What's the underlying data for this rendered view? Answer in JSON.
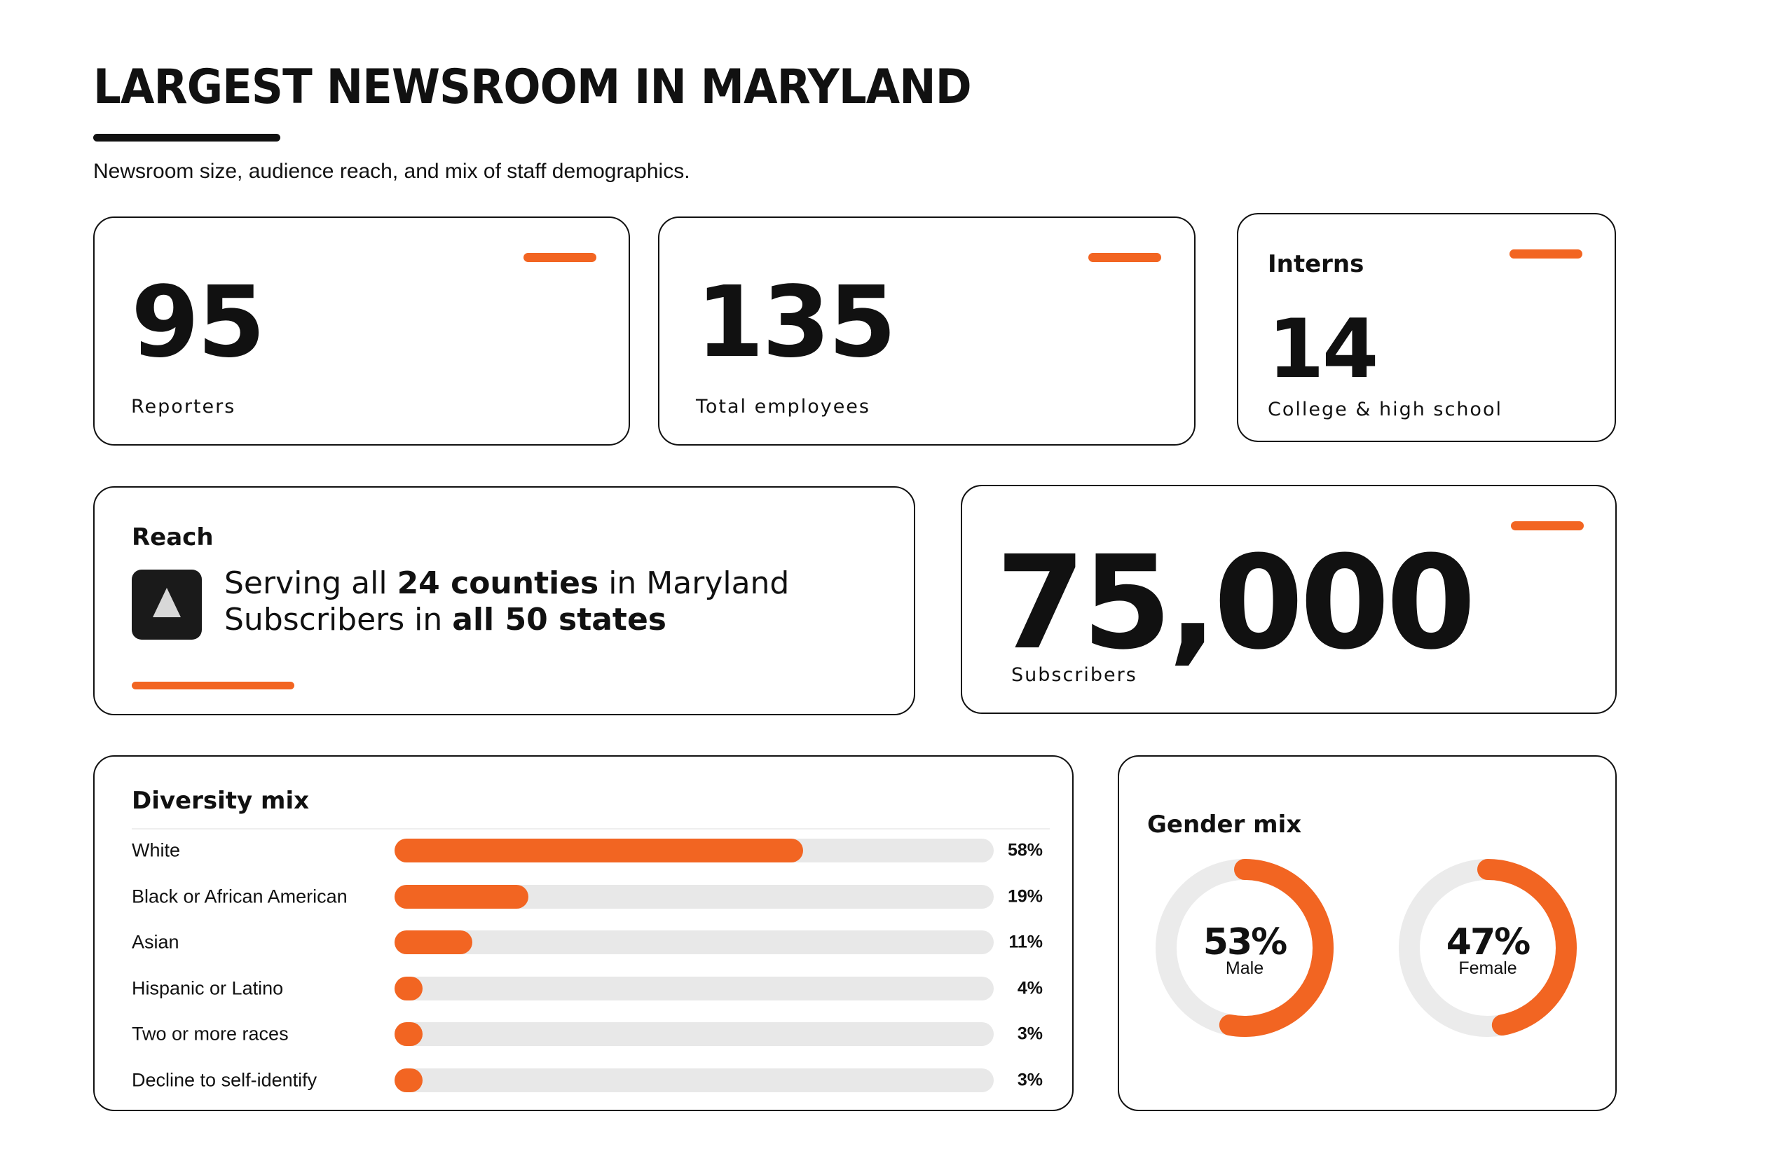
{
  "header": {
    "title": "LARGEST NEWSROOM IN MARYLAND",
    "subtitle": "Newsroom size, audience reach, and mix of staff demographics."
  },
  "stats": {
    "reporters": {
      "value": "95",
      "label": "Reporters"
    },
    "employees": {
      "value": "135",
      "label": "Total employees"
    },
    "interns": {
      "heading": "Interns",
      "value": "14",
      "label": "College & high school"
    },
    "subscribers": {
      "value": "75,000",
      "label": "Subscribers"
    }
  },
  "reach": {
    "heading": "Reach",
    "line1_pre": "Serving all ",
    "line1_bold": "24 counties",
    "line1_post": " in Maryland",
    "line2_pre": "Subscribers in ",
    "line2_bold": "all 50 states",
    "icon": "triangle-logo-icon"
  },
  "colors": {
    "accent": "#F26522",
    "text": "#111111",
    "track": "#E8E8E8",
    "ring_track": "#EBEBEB",
    "icon_bg": "#1A1A1A",
    "icon_fg": "#D8D8D8"
  },
  "chart_data": [
    {
      "type": "bar",
      "title": "Diversity mix",
      "orientation": "horizontal",
      "categories": [
        "White",
        "Black or African American",
        "Asian",
        "Hispanic or Latino",
        "Two or more races",
        "Decline to self-identify"
      ],
      "values": [
        58,
        19,
        11,
        4,
        3,
        3
      ],
      "value_labels": [
        "58%",
        "19%",
        "11%",
        "4%",
        "3%",
        "3%"
      ],
      "xlim": [
        0,
        85
      ]
    },
    {
      "type": "pie",
      "title": "Gender mix",
      "style": "donut",
      "categories": [
        "Male",
        "Female"
      ],
      "values": [
        53,
        47
      ],
      "value_labels": [
        "53%",
        "47%"
      ]
    }
  ]
}
